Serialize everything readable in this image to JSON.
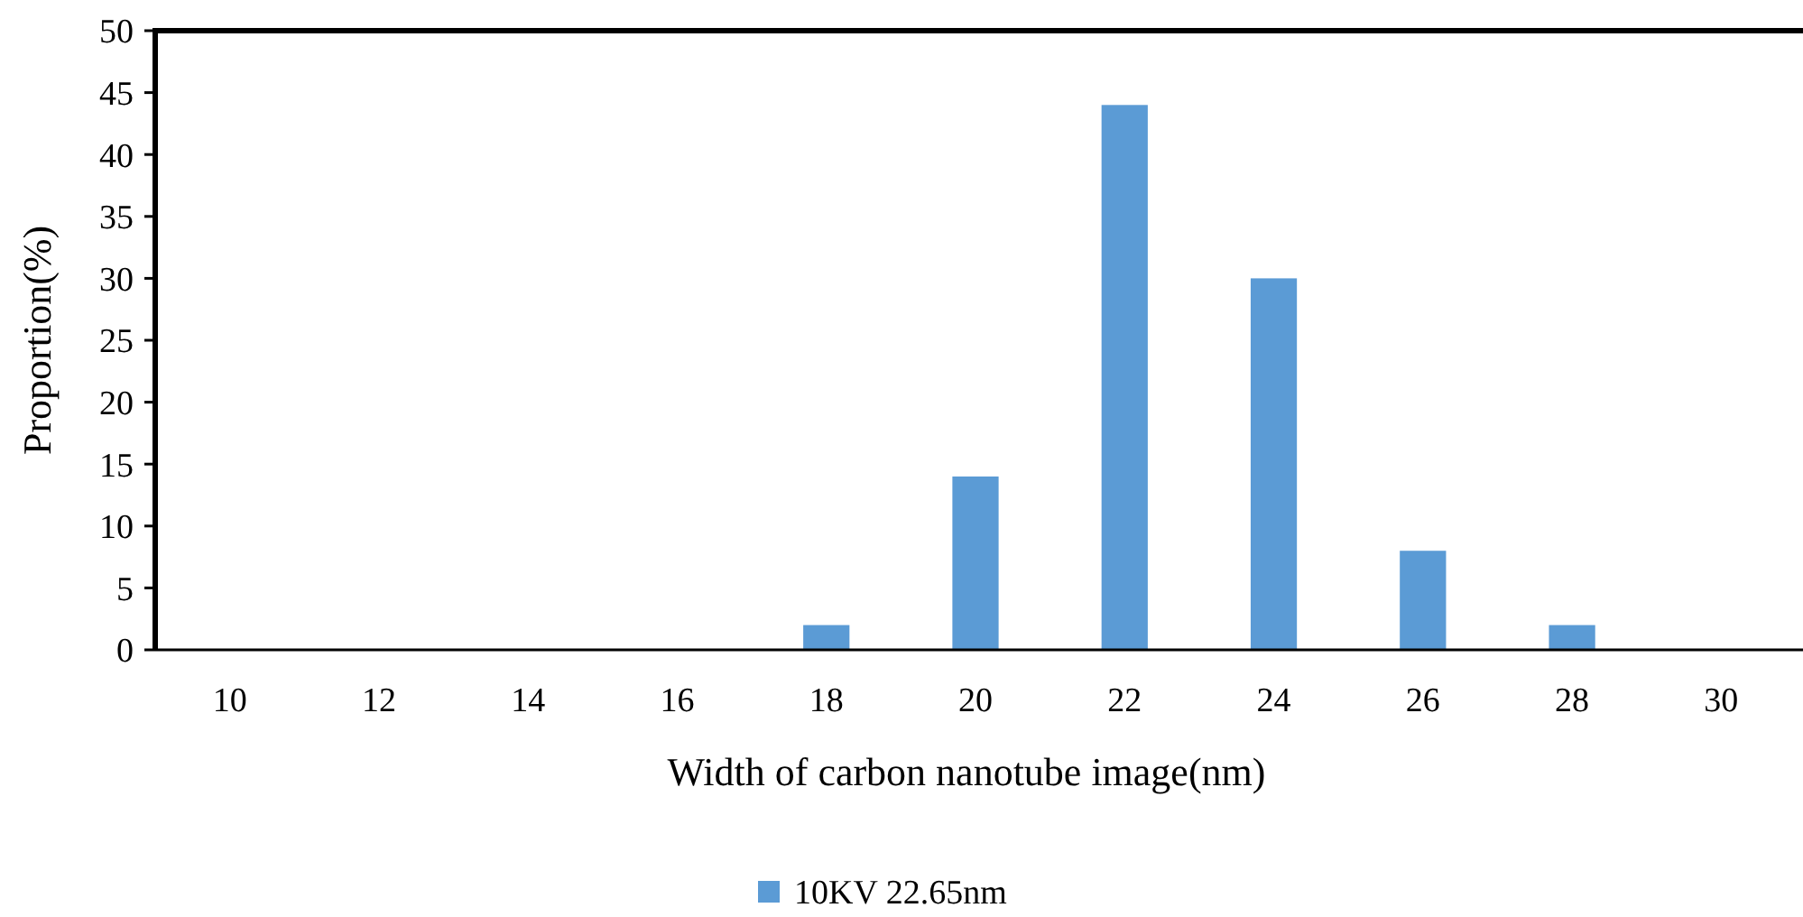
{
  "chart_data": {
    "type": "bar",
    "xlabel": "Width of carbon nanotube image(nm)",
    "ylabel": "Proportion(%)",
    "categories": [
      "10",
      "12",
      "14",
      "16",
      "18",
      "20",
      "22",
      "24",
      "26",
      "28",
      "30"
    ],
    "series": [
      {
        "name": "10KV 22.65nm",
        "color": "#5b9bd5",
        "values": [
          0,
          0,
          0,
          0,
          2,
          14,
          44,
          30,
          8,
          2,
          0
        ]
      }
    ],
    "ylim": [
      0,
      50
    ],
    "yticks": [
      0,
      5,
      10,
      15,
      20,
      25,
      30,
      35,
      40,
      45,
      50
    ],
    "grid": false,
    "legend": "bottom"
  }
}
